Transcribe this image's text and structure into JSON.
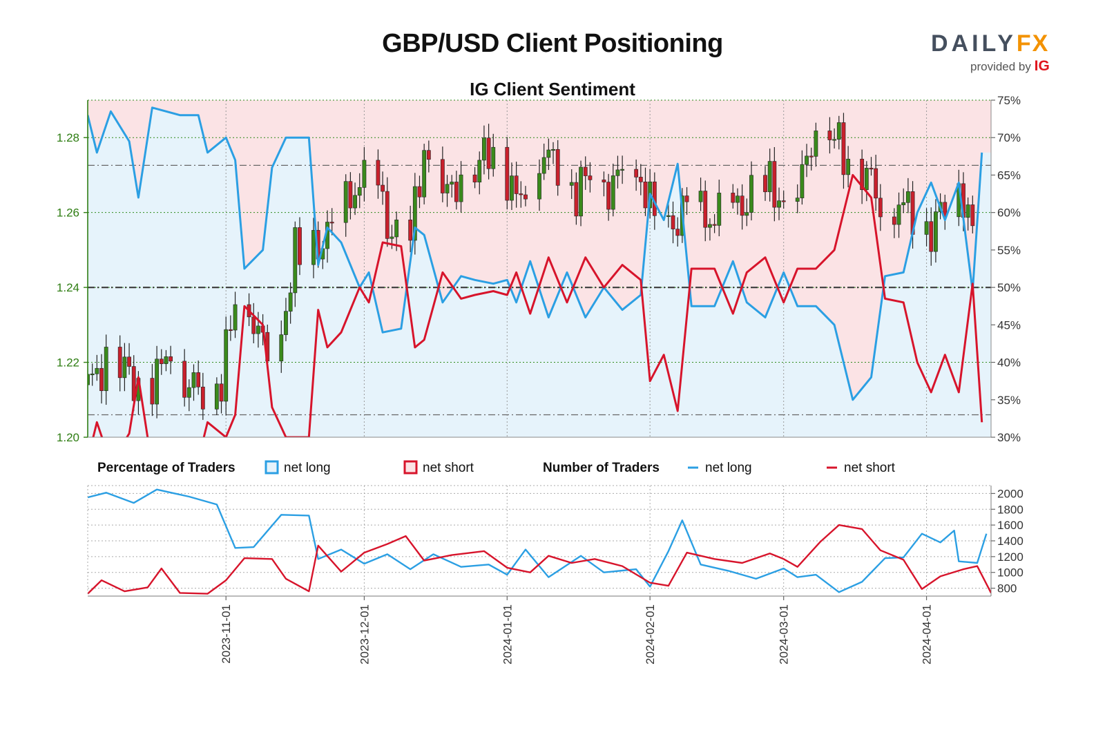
{
  "header": {
    "title": "GBP/USD Client Positioning",
    "subtitle": "IG Client Sentiment"
  },
  "logo": {
    "brand_main": "DAILY",
    "brand_accent": "FX",
    "provided_by": "provided by",
    "provider": "IG"
  },
  "colors": {
    "net_long": "#2b9fe3",
    "net_short": "#d7142b",
    "long_fill": "#e6f3fb",
    "short_fill": "#fbe3e5",
    "candle_up": "#3a8a1c",
    "candle_down": "#c8202c",
    "price_axis": "#2e7d12"
  },
  "legend": {
    "percentage_heading": "Percentage of Traders",
    "pct_long_label": "net long",
    "pct_short_label": "net short",
    "number_heading": "Number of Traders",
    "num_long_label": "net long",
    "num_short_label": "net short"
  },
  "chart_data": [
    {
      "type": "candlestick+line",
      "title": "IG Client Sentiment",
      "x_range": [
        "2023-10-02",
        "2024-04-15"
      ],
      "x_ticks": [
        "2023-11-01",
        "2023-12-01",
        "2024-01-01",
        "2024-02-01",
        "2024-03-01",
        "2024-04-01"
      ],
      "left_axis": {
        "ylim": [
          1.2,
          1.29
        ],
        "ticks": [
          "1.20",
          "1.22",
          "1.24",
          "1.26",
          "1.28"
        ]
      },
      "right_axis": {
        "ylim": [
          30,
          75
        ],
        "unit": "%",
        "ticks": [
          "30%",
          "35%",
          "40%",
          "45%",
          "50%",
          "55%",
          "60%",
          "65%",
          "70%",
          "75%"
        ]
      },
      "reference_lines": {
        "upper": 66.3,
        "mid": 50,
        "lower": 33.0
      },
      "price_anchors": [
        {
          "date": "2023-10-02",
          "close": 1.214
        },
        {
          "date": "2023-10-06",
          "close": 1.22
        },
        {
          "date": "2023-10-10",
          "close": 1.218
        },
        {
          "date": "2023-10-13",
          "close": 1.214
        },
        {
          "date": "2023-10-17",
          "close": 1.216
        },
        {
          "date": "2023-10-20",
          "close": 1.225
        },
        {
          "date": "2023-10-23",
          "close": 1.214
        },
        {
          "date": "2023-10-27",
          "close": 1.213
        },
        {
          "date": "2023-10-31",
          "close": 1.215
        },
        {
          "date": "2023-11-03",
          "close": 1.237
        },
        {
          "date": "2023-11-06",
          "close": 1.234
        },
        {
          "date": "2023-11-10",
          "close": 1.222
        },
        {
          "date": "2023-11-13",
          "close": 1.228
        },
        {
          "date": "2023-11-16",
          "close": 1.249
        },
        {
          "date": "2023-11-20",
          "close": 1.25
        },
        {
          "date": "2023-11-23",
          "close": 1.254
        },
        {
          "date": "2023-11-27",
          "close": 1.262
        },
        {
          "date": "2023-11-30",
          "close": 1.268
        },
        {
          "date": "2023-12-04",
          "close": 1.266
        },
        {
          "date": "2023-12-07",
          "close": 1.254
        },
        {
          "date": "2023-12-11",
          "close": 1.253
        },
        {
          "date": "2023-12-14",
          "close": 1.277
        },
        {
          "date": "2023-12-18",
          "close": 1.264
        },
        {
          "date": "2023-12-21",
          "close": 1.268
        },
        {
          "date": "2023-12-25",
          "close": 1.27
        },
        {
          "date": "2023-12-28",
          "close": 1.278
        },
        {
          "date": "2024-01-01",
          "close": 1.27
        },
        {
          "date": "2024-01-03",
          "close": 1.263
        },
        {
          "date": "2024-01-08",
          "close": 1.275
        },
        {
          "date": "2024-01-12",
          "close": 1.274
        },
        {
          "date": "2024-01-16",
          "close": 1.265
        },
        {
          "date": "2024-01-19",
          "close": 1.271
        },
        {
          "date": "2024-01-23",
          "close": 1.266
        },
        {
          "date": "2024-01-26",
          "close": 1.271
        },
        {
          "date": "2024-01-30",
          "close": 1.269
        },
        {
          "date": "2024-02-01",
          "close": 1.262
        },
        {
          "date": "2024-02-05",
          "close": 1.255
        },
        {
          "date": "2024-02-09",
          "close": 1.262
        },
        {
          "date": "2024-02-13",
          "close": 1.258
        },
        {
          "date": "2024-02-16",
          "close": 1.259
        },
        {
          "date": "2024-02-21",
          "close": 1.262
        },
        {
          "date": "2024-02-26",
          "close": 1.268
        },
        {
          "date": "2024-03-01",
          "close": 1.263
        },
        {
          "date": "2024-03-04",
          "close": 1.265
        },
        {
          "date": "2024-03-08",
          "close": 1.283
        },
        {
          "date": "2024-03-12",
          "close": 1.28
        },
        {
          "date": "2024-03-15",
          "close": 1.274
        },
        {
          "date": "2024-03-19",
          "close": 1.271
        },
        {
          "date": "2024-03-22",
          "close": 1.262
        },
        {
          "date": "2024-03-26",
          "close": 1.262
        },
        {
          "date": "2024-03-29",
          "close": 1.261
        },
        {
          "date": "2024-04-02",
          "close": 1.255
        },
        {
          "date": "2024-04-05",
          "close": 1.262
        },
        {
          "date": "2024-04-09",
          "close": 1.265
        },
        {
          "date": "2024-04-11",
          "close": 1.255
        }
      ],
      "net_long_pct": [
        {
          "date": "2023-10-02",
          "value": 73
        },
        {
          "date": "2023-10-04",
          "value": 68
        },
        {
          "date": "2023-10-07",
          "value": 73.5
        },
        {
          "date": "2023-10-11",
          "value": 69.5
        },
        {
          "date": "2023-10-13",
          "value": 62
        },
        {
          "date": "2023-10-16",
          "value": 74
        },
        {
          "date": "2023-10-22",
          "value": 73
        },
        {
          "date": "2023-10-26",
          "value": 73
        },
        {
          "date": "2023-10-28",
          "value": 68
        },
        {
          "date": "2023-11-01",
          "value": 70
        },
        {
          "date": "2023-11-03",
          "value": 67
        },
        {
          "date": "2023-11-05",
          "value": 52.5
        },
        {
          "date": "2023-11-09",
          "value": 55
        },
        {
          "date": "2023-11-11",
          "value": 66
        },
        {
          "date": "2023-11-14",
          "value": 70
        },
        {
          "date": "2023-11-19",
          "value": 70
        },
        {
          "date": "2023-11-21",
          "value": 53
        },
        {
          "date": "2023-11-23",
          "value": 58
        },
        {
          "date": "2023-11-26",
          "value": 56
        },
        {
          "date": "2023-11-30",
          "value": 50
        },
        {
          "date": "2023-12-02",
          "value": 52
        },
        {
          "date": "2023-12-05",
          "value": 44
        },
        {
          "date": "2023-12-09",
          "value": 44.5
        },
        {
          "date": "2023-12-12",
          "value": 58
        },
        {
          "date": "2023-12-14",
          "value": 57
        },
        {
          "date": "2023-12-18",
          "value": 48
        },
        {
          "date": "2023-12-22",
          "value": 51.5
        },
        {
          "date": "2023-12-25",
          "value": 51
        },
        {
          "date": "2023-12-29",
          "value": 50.5
        },
        {
          "date": "2024-01-01",
          "value": 51
        },
        {
          "date": "2024-01-03",
          "value": 48
        },
        {
          "date": "2024-01-06",
          "value": 53.5
        },
        {
          "date": "2024-01-10",
          "value": 46
        },
        {
          "date": "2024-01-14",
          "value": 52
        },
        {
          "date": "2024-01-18",
          "value": 46
        },
        {
          "date": "2024-01-22",
          "value": 50
        },
        {
          "date": "2024-01-26",
          "value": 47
        },
        {
          "date": "2024-01-30",
          "value": 49
        },
        {
          "date": "2024-02-01",
          "value": 62.5
        },
        {
          "date": "2024-02-04",
          "value": 59
        },
        {
          "date": "2024-02-07",
          "value": 66.5
        },
        {
          "date": "2024-02-10",
          "value": 47.5
        },
        {
          "date": "2024-02-15",
          "value": 47.5
        },
        {
          "date": "2024-02-19",
          "value": 53.5
        },
        {
          "date": "2024-02-22",
          "value": 48
        },
        {
          "date": "2024-02-26",
          "value": 46
        },
        {
          "date": "2024-03-01",
          "value": 52
        },
        {
          "date": "2024-03-04",
          "value": 47.5
        },
        {
          "date": "2024-03-08",
          "value": 47.5
        },
        {
          "date": "2024-03-12",
          "value": 45
        },
        {
          "date": "2024-03-16",
          "value": 35
        },
        {
          "date": "2024-03-20",
          "value": 38
        },
        {
          "date": "2024-03-23",
          "value": 51.5
        },
        {
          "date": "2024-03-27",
          "value": 52
        },
        {
          "date": "2024-03-30",
          "value": 60
        },
        {
          "date": "2024-04-02",
          "value": 64
        },
        {
          "date": "2024-04-05",
          "value": 59
        },
        {
          "date": "2024-04-08",
          "value": 64
        },
        {
          "date": "2024-04-11",
          "value": 49.5
        },
        {
          "date": "2024-04-13",
          "value": 68
        }
      ],
      "net_short_pct_note": "net short = 100 - net long"
    },
    {
      "type": "line",
      "title": "Number of Traders",
      "ylim": [
        700,
        2100
      ],
      "ticks": [
        "800",
        "1000",
        "1200",
        "1400",
        "1600",
        "1800",
        "2000"
      ],
      "net_long_count": [
        {
          "date": "2023-10-02",
          "value": 1950
        },
        {
          "date": "2023-10-06",
          "value": 2010
        },
        {
          "date": "2023-10-12",
          "value": 1880
        },
        {
          "date": "2023-10-17",
          "value": 2050
        },
        {
          "date": "2023-10-24",
          "value": 1960
        },
        {
          "date": "2023-10-30",
          "value": 1860
        },
        {
          "date": "2023-11-03",
          "value": 1310
        },
        {
          "date": "2023-11-07",
          "value": 1320
        },
        {
          "date": "2023-11-13",
          "value": 1730
        },
        {
          "date": "2023-11-19",
          "value": 1720
        },
        {
          "date": "2023-11-21",
          "value": 1170
        },
        {
          "date": "2023-11-26",
          "value": 1290
        },
        {
          "date": "2023-12-01",
          "value": 1110
        },
        {
          "date": "2023-12-06",
          "value": 1230
        },
        {
          "date": "2023-12-11",
          "value": 1040
        },
        {
          "date": "2023-12-16",
          "value": 1230
        },
        {
          "date": "2023-12-22",
          "value": 1070
        },
        {
          "date": "2023-12-28",
          "value": 1100
        },
        {
          "date": "2024-01-01",
          "value": 970
        },
        {
          "date": "2024-01-05",
          "value": 1290
        },
        {
          "date": "2024-01-10",
          "value": 940
        },
        {
          "date": "2024-01-17",
          "value": 1210
        },
        {
          "date": "2024-01-22",
          "value": 1000
        },
        {
          "date": "2024-01-29",
          "value": 1040
        },
        {
          "date": "2024-02-01",
          "value": 820
        },
        {
          "date": "2024-02-05",
          "value": 1270
        },
        {
          "date": "2024-02-08",
          "value": 1660
        },
        {
          "date": "2024-02-12",
          "value": 1100
        },
        {
          "date": "2024-02-18",
          "value": 1020
        },
        {
          "date": "2024-02-24",
          "value": 920
        },
        {
          "date": "2024-03-01",
          "value": 1050
        },
        {
          "date": "2024-03-04",
          "value": 940
        },
        {
          "date": "2024-03-08",
          "value": 970
        },
        {
          "date": "2024-03-13",
          "value": 750
        },
        {
          "date": "2024-03-18",
          "value": 880
        },
        {
          "date": "2024-03-23",
          "value": 1180
        },
        {
          "date": "2024-03-27",
          "value": 1190
        },
        {
          "date": "2024-03-31",
          "value": 1490
        },
        {
          "date": "2024-04-04",
          "value": 1380
        },
        {
          "date": "2024-04-07",
          "value": 1530
        },
        {
          "date": "2024-04-08",
          "value": 1140
        },
        {
          "date": "2024-04-12",
          "value": 1120
        },
        {
          "date": "2024-04-14",
          "value": 1490
        }
      ],
      "net_short_count": [
        {
          "date": "2023-10-02",
          "value": 730
        },
        {
          "date": "2023-10-05",
          "value": 900
        },
        {
          "date": "2023-10-10",
          "value": 760
        },
        {
          "date": "2023-10-15",
          "value": 810
        },
        {
          "date": "2023-10-18",
          "value": 1050
        },
        {
          "date": "2023-10-22",
          "value": 740
        },
        {
          "date": "2023-10-28",
          "value": 730
        },
        {
          "date": "2023-11-01",
          "value": 900
        },
        {
          "date": "2023-11-05",
          "value": 1180
        },
        {
          "date": "2023-11-11",
          "value": 1170
        },
        {
          "date": "2023-11-14",
          "value": 920
        },
        {
          "date": "2023-11-19",
          "value": 760
        },
        {
          "date": "2023-11-21",
          "value": 1340
        },
        {
          "date": "2023-11-26",
          "value": 1010
        },
        {
          "date": "2023-12-01",
          "value": 1250
        },
        {
          "date": "2023-12-06",
          "value": 1360
        },
        {
          "date": "2023-12-10",
          "value": 1460
        },
        {
          "date": "2023-12-14",
          "value": 1150
        },
        {
          "date": "2023-12-20",
          "value": 1220
        },
        {
          "date": "2023-12-27",
          "value": 1270
        },
        {
          "date": "2024-01-01",
          "value": 1060
        },
        {
          "date": "2024-01-06",
          "value": 1000
        },
        {
          "date": "2024-01-10",
          "value": 1210
        },
        {
          "date": "2024-01-15",
          "value": 1120
        },
        {
          "date": "2024-01-20",
          "value": 1170
        },
        {
          "date": "2024-01-26",
          "value": 1080
        },
        {
          "date": "2024-02-01",
          "value": 870
        },
        {
          "date": "2024-02-05",
          "value": 830
        },
        {
          "date": "2024-02-09",
          "value": 1250
        },
        {
          "date": "2024-02-15",
          "value": 1170
        },
        {
          "date": "2024-02-21",
          "value": 1120
        },
        {
          "date": "2024-02-27",
          "value": 1240
        },
        {
          "date": "2024-03-01",
          "value": 1170
        },
        {
          "date": "2024-03-04",
          "value": 1070
        },
        {
          "date": "2024-03-09",
          "value": 1390
        },
        {
          "date": "2024-03-13",
          "value": 1600
        },
        {
          "date": "2024-03-18",
          "value": 1550
        },
        {
          "date": "2024-03-22",
          "value": 1280
        },
        {
          "date": "2024-03-27",
          "value": 1160
        },
        {
          "date": "2024-03-31",
          "value": 790
        },
        {
          "date": "2024-04-04",
          "value": 950
        },
        {
          "date": "2024-04-09",
          "value": 1040
        },
        {
          "date": "2024-04-12",
          "value": 1080
        },
        {
          "date": "2024-04-15",
          "value": 740
        }
      ]
    }
  ]
}
